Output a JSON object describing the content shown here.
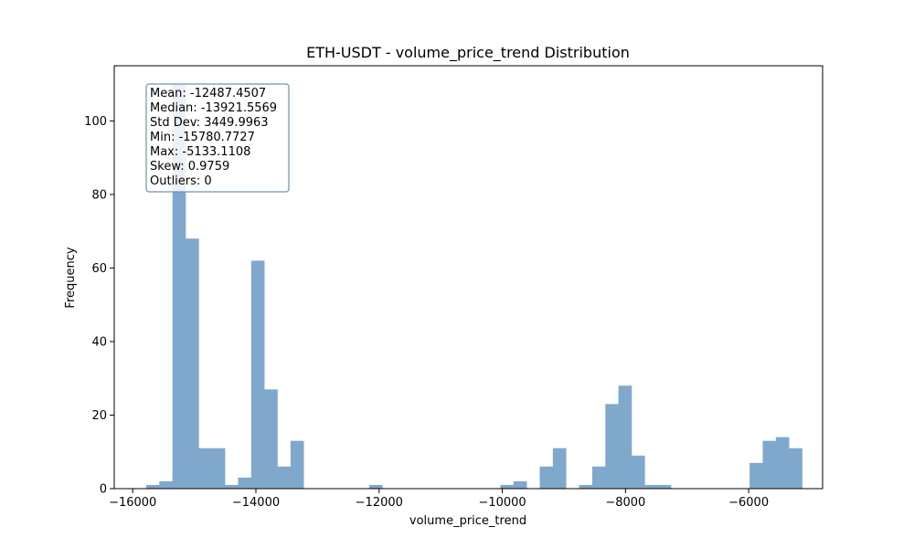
{
  "chart_data": {
    "type": "bar",
    "subtype": "histogram",
    "title": "ETH-USDT - volume_price_trend Distribution",
    "xlabel": "volume_price_trend",
    "ylabel": "Frequency",
    "xlim": [
      -16300,
      -4800
    ],
    "ylim": [
      0,
      115
    ],
    "x_ticks": [
      -16000,
      -14000,
      -12000,
      -10000,
      -8000,
      -6000
    ],
    "x_tick_labels": [
      "−16000",
      "−14000",
      "−12000",
      "−10000",
      "−8000",
      "−6000"
    ],
    "y_ticks": [
      0,
      20,
      40,
      60,
      80,
      100
    ],
    "y_tick_labels": [
      "0",
      "20",
      "40",
      "60",
      "80",
      "100"
    ],
    "grid": false,
    "bar_color": "#7fa8cc",
    "bins": {
      "min": -15780.7727,
      "max": -5133.1108,
      "count": 50
    },
    "values": [
      1,
      2,
      110,
      68,
      11,
      11,
      1,
      3,
      62,
      27,
      6,
      13,
      0,
      0,
      0,
      0,
      0,
      1,
      0,
      0,
      0,
      0,
      0,
      0,
      0,
      0,
      0,
      1,
      2,
      0,
      6,
      11,
      0,
      1,
      6,
      23,
      28,
      9,
      1,
      1,
      0,
      0,
      0,
      0,
      0,
      0,
      7,
      13,
      14,
      11
    ],
    "stats_box": {
      "lines": [
        "Mean: -12487.4507",
        "Median: -13921.5569",
        "Std Dev: 3449.9963",
        "Min: -15780.7727",
        "Max: -5133.1108",
        "Skew: 0.9759",
        "Outliers: 0"
      ],
      "border_color": "#6b93b3",
      "placement": "top-left"
    }
  }
}
